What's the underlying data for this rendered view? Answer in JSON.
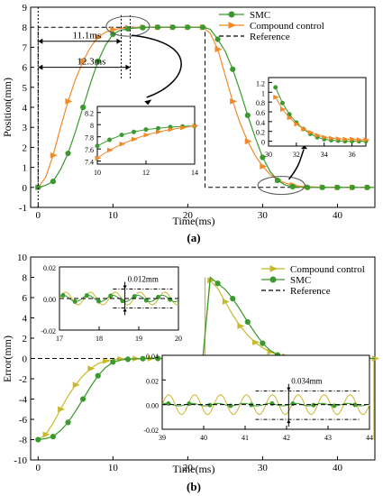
{
  "colors": {
    "smc": "#3a9a2e",
    "compound": "#f08a28",
    "compound_b": "#c8b82a",
    "reference": "#000000",
    "axis": "#000000"
  },
  "chart_data": [
    {
      "id": "a",
      "type": "line",
      "caption": "(a)",
      "xlabel": "Time(ms)",
      "ylabel": "Position(mm)",
      "xlim": [
        -1,
        45
      ],
      "ylim": [
        -1,
        9
      ],
      "xticks": [
        0,
        10,
        20,
        30,
        40
      ],
      "yticks": [
        -1,
        0,
        1,
        2,
        3,
        4,
        5,
        6,
        7,
        8,
        9
      ],
      "legend": {
        "position": "top-right",
        "entries": [
          "SMC",
          "Compound control",
          "Reference"
        ]
      },
      "series": [
        {
          "name": "SMC",
          "marker": "circle",
          "x": [
            0,
            1,
            2,
            3,
            4,
            5,
            6,
            7,
            8,
            9,
            10,
            11,
            12,
            13,
            14,
            15,
            16,
            17,
            18,
            19,
            20,
            21,
            22,
            23,
            24,
            25,
            26,
            27,
            28,
            29,
            30,
            31,
            32,
            33,
            34,
            35,
            36,
            37,
            38,
            39,
            40,
            41,
            42,
            43,
            44,
            45
          ],
          "y": [
            0,
            0.1,
            0.3,
            0.9,
            1.7,
            2.8,
            4.0,
            5.2,
            6.3,
            7.1,
            7.65,
            7.85,
            7.92,
            7.96,
            7.98,
            8.0,
            8.0,
            8.0,
            8.0,
            8.0,
            8.0,
            8.0,
            8.0,
            7.9,
            7.4,
            6.8,
            5.9,
            4.8,
            3.6,
            2.5,
            1.5,
            0.8,
            0.35,
            0.12,
            0.04,
            0.01,
            0,
            0,
            0,
            0,
            0,
            0,
            0,
            0,
            0,
            0
          ]
        },
        {
          "name": "Compound control",
          "marker": "triangle",
          "x": [
            0,
            1,
            2,
            3,
            4,
            5,
            6,
            7,
            8,
            9,
            10,
            11,
            12,
            13,
            14,
            15,
            16,
            17,
            18,
            19,
            20,
            21,
            22,
            23,
            24,
            25,
            26,
            27,
            28,
            29,
            30,
            31,
            32,
            33,
            34,
            35,
            36,
            37,
            38,
            39,
            40,
            41,
            42,
            43,
            44,
            45
          ],
          "y": [
            0,
            0.5,
            1.6,
            3.0,
            4.3,
            5.4,
            6.3,
            7.0,
            7.5,
            7.75,
            7.88,
            7.94,
            7.97,
            7.99,
            8.0,
            8.0,
            8.0,
            8.0,
            8.0,
            8.0,
            8.0,
            8.0,
            8.0,
            7.7,
            6.9,
            5.6,
            4.3,
            3.2,
            2.3,
            1.6,
            1.05,
            0.65,
            0.38,
            0.22,
            0.12,
            0.06,
            0.03,
            0.02,
            0.01,
            0,
            0,
            0,
            0,
            0,
            0,
            0
          ]
        },
        {
          "name": "Reference",
          "style": "dashed",
          "x": [
            0,
            0,
            22.3,
            22.3,
            45
          ],
          "y": [
            0,
            8,
            8,
            0,
            0
          ]
        }
      ],
      "annotations": [
        {
          "text": "11.1ms",
          "x": 11.1,
          "y": 7.3
        },
        {
          "text": "12.3ms",
          "x": 12.3,
          "y": 6.0
        }
      ],
      "insets": [
        {
          "id": "a-inset-1",
          "xlim": [
            10,
            14
          ],
          "ylim": [
            7.35,
            8.3
          ],
          "xticks": [
            10,
            12,
            14
          ],
          "yticks": [
            7.4,
            7.6,
            7.8,
            8.0,
            8.2
          ],
          "series": [
            {
              "name": "SMC",
              "x": [
                10,
                10.5,
                11,
                11.5,
                12,
                12.5,
                13,
                13.5,
                14
              ],
              "y": [
                7.65,
                7.75,
                7.83,
                7.88,
                7.92,
                7.94,
                7.96,
                7.97,
                7.98
              ]
            },
            {
              "name": "Compound control",
              "x": [
                10,
                10.5,
                11,
                11.5,
                12,
                12.5,
                13,
                13.5,
                14
              ],
              "y": [
                7.45,
                7.58,
                7.68,
                7.76,
                7.83,
                7.88,
                7.92,
                7.95,
                7.98
              ]
            }
          ]
        },
        {
          "id": "a-inset-2",
          "xlim": [
            30,
            37
          ],
          "ylim": [
            -0.1,
            1.3
          ],
          "xticks": [
            30,
            32,
            34,
            36
          ],
          "yticks": [
            0.0,
            0.2,
            0.4,
            0.6,
            0.8,
            1.0,
            1.2
          ],
          "series": [
            {
              "name": "SMC",
              "x": [
                30.5,
                31,
                31.5,
                32,
                32.5,
                33,
                33.5,
                34,
                34.5,
                35,
                35.5,
                36,
                36.5,
                37
              ],
              "y": [
                1.1,
                0.78,
                0.55,
                0.38,
                0.25,
                0.15,
                0.08,
                0.04,
                0.02,
                0.01,
                0,
                0,
                0,
                0
              ]
            },
            {
              "name": "Compound control",
              "x": [
                30.5,
                31,
                31.5,
                32,
                32.5,
                33,
                33.5,
                34,
                34.5,
                35,
                35.5,
                36,
                36.5,
                37
              ],
              "y": [
                0.9,
                0.65,
                0.48,
                0.35,
                0.25,
                0.18,
                0.12,
                0.08,
                0.06,
                0.05,
                0.04,
                0.04,
                0.03,
                0.03
              ]
            }
          ]
        }
      ]
    },
    {
      "id": "b",
      "type": "line",
      "caption": "(b)",
      "xlabel": "Time(ms)",
      "ylabel": "Error(mm)",
      "xlim": [
        -1,
        45
      ],
      "ylim": [
        -10,
        10
      ],
      "xticks": [
        0,
        10,
        20,
        30,
        40
      ],
      "yticks": [
        -10,
        -8,
        -6,
        -4,
        -2,
        0,
        2,
        4,
        6,
        8,
        10
      ],
      "legend": {
        "position": "top-right",
        "entries": [
          "Compound control",
          "SMC",
          "Reference"
        ]
      },
      "series": [
        {
          "name": "Compound control",
          "marker": "triangle",
          "x": [
            0,
            1,
            2,
            3,
            4,
            5,
            6,
            7,
            8,
            9,
            10,
            11,
            12,
            13,
            14,
            15,
            16,
            17,
            18,
            19,
            20,
            21,
            22,
            23,
            24,
            25,
            26,
            27,
            28,
            29,
            30,
            31,
            32,
            33,
            34,
            35,
            36,
            37,
            38,
            39,
            40,
            41,
            42,
            43,
            44,
            45
          ],
          "y": [
            -8,
            -7.5,
            -6.4,
            -5.0,
            -3.7,
            -2.6,
            -1.7,
            -1.0,
            -0.5,
            -0.25,
            -0.12,
            -0.06,
            -0.03,
            -0.01,
            0,
            0,
            0,
            0,
            0,
            0,
            0,
            0,
            0,
            7.7,
            6.9,
            5.6,
            4.3,
            3.2,
            2.3,
            1.6,
            1.05,
            0.65,
            0.38,
            0.22,
            0.12,
            0.06,
            0.03,
            0.02,
            0.01,
            0,
            0,
            0,
            0,
            0,
            0,
            0
          ]
        },
        {
          "name": "SMC",
          "marker": "circle",
          "x": [
            0,
            1,
            2,
            3,
            4,
            5,
            6,
            7,
            8,
            9,
            10,
            11,
            12,
            13,
            14,
            15,
            16,
            17,
            18,
            19,
            20,
            21,
            22,
            23,
            24,
            25,
            26,
            27,
            28,
            29,
            30,
            31,
            32,
            33,
            34,
            35,
            36,
            37,
            38,
            39,
            40,
            41,
            42,
            43,
            44,
            45
          ],
          "y": [
            -8,
            -7.9,
            -7.7,
            -7.1,
            -6.3,
            -5.2,
            -4.0,
            -2.8,
            -1.7,
            -0.9,
            -0.35,
            -0.15,
            -0.08,
            -0.04,
            -0.02,
            0,
            0,
            0,
            0,
            0,
            0,
            0,
            0,
            8.0,
            7.4,
            6.8,
            5.9,
            4.8,
            3.6,
            2.5,
            1.5,
            0.8,
            0.35,
            0.12,
            0.04,
            0.01,
            0,
            0,
            0,
            0,
            0,
            0,
            0,
            0,
            0,
            0
          ]
        },
        {
          "name": "Reference",
          "style": "dashed",
          "x": [
            -1,
            45
          ],
          "y": [
            0,
            0
          ]
        }
      ],
      "insets": [
        {
          "id": "b-inset-1",
          "xlim": [
            17,
            20
          ],
          "ylim": [
            -0.02,
            0.02
          ],
          "xticks": [
            17,
            18,
            19,
            20
          ],
          "yticks": [
            -0.02,
            0.0,
            0.02
          ],
          "xtick_labels": [
            "17",
            "18",
            "19",
            "20"
          ],
          "ytick_labels": [
            "-0.02",
            "0.00",
            "0.02"
          ],
          "annotation": "0.012mm",
          "band": [
            -0.006,
            0.006
          ]
        },
        {
          "id": "b-inset-2",
          "xlim": [
            39,
            44
          ],
          "ylim": [
            -0.02,
            0.04
          ],
          "xticks": [
            39,
            40,
            41,
            42,
            43,
            44
          ],
          "yticks": [
            -0.02,
            0.0,
            0.02,
            0.04
          ],
          "xtick_labels": [
            "39",
            "40",
            "41",
            "42",
            "43",
            "44"
          ],
          "ytick_labels": [
            "-0.02",
            "0.00",
            "0.02",
            "0.04"
          ],
          "annotation": "0.034mm",
          "band": [
            -0.012,
            0.011
          ]
        }
      ]
    }
  ]
}
